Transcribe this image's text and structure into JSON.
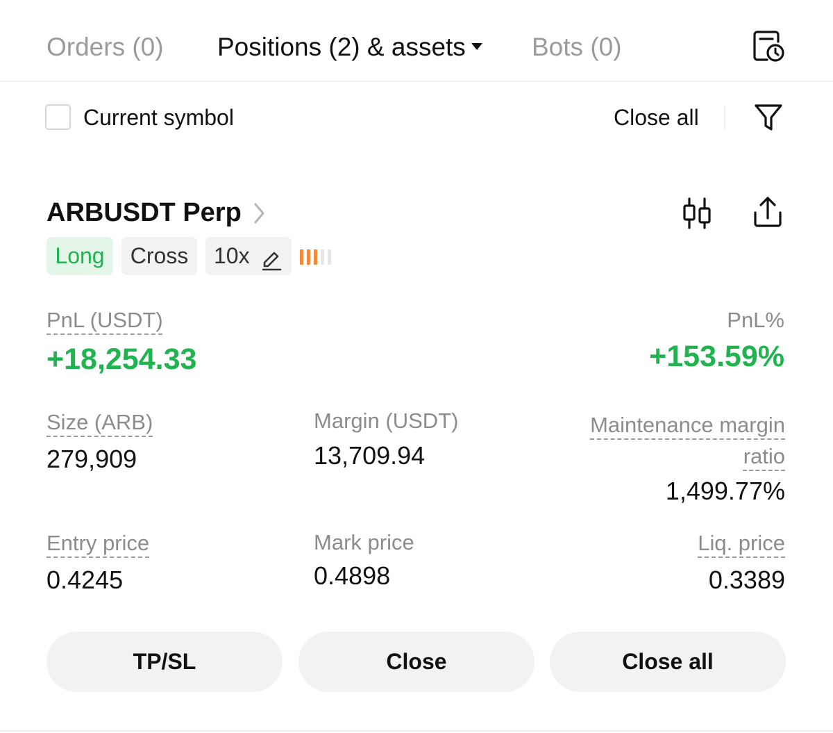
{
  "tabs": {
    "orders": "Orders (0)",
    "positions": "Positions (2) & assets",
    "bots": "Bots (0)"
  },
  "filter": {
    "current_symbol_label": "Current symbol",
    "current_symbol_checked": false,
    "close_all_label": "Close all"
  },
  "position": {
    "symbol": "ARBUSDT Perp",
    "side": "Long",
    "margin_mode": "Cross",
    "leverage": "10x",
    "risk_level": 3,
    "risk_level_max": 5,
    "pnl_label": "PnL (USDT)",
    "pnl_value": "+18,254.33",
    "pnl_pct_label": "PnL%",
    "pnl_pct_value": "+153.59%",
    "size_label": "Size (ARB)",
    "size_value": "279,909",
    "margin_label": "Margin (USDT)",
    "margin_value": "13,709.94",
    "mmr_label_line1": "Maintenance margin",
    "mmr_label_line2": "ratio",
    "mmr_value": "1,499.77%",
    "entry_label": "Entry price",
    "entry_value": "0.4245",
    "mark_label": "Mark price",
    "mark_value": "0.4898",
    "liq_label": "Liq. price",
    "liq_value": "0.3389"
  },
  "actions": {
    "tpsl": "TP/SL",
    "close": "Close",
    "close_all": "Close all"
  },
  "icons": {
    "history": "history-clock-icon",
    "filter": "filter-funnel-icon",
    "chart": "candlestick-chart-icon",
    "share": "share-icon",
    "edit": "pencil-icon",
    "chevron": "chevron-right-icon"
  },
  "colors": {
    "positive": "#21b350",
    "long_badge_bg": "#e3f6e8",
    "risk_active": "#f08a3c",
    "risk_inactive": "#e6e6e6"
  }
}
